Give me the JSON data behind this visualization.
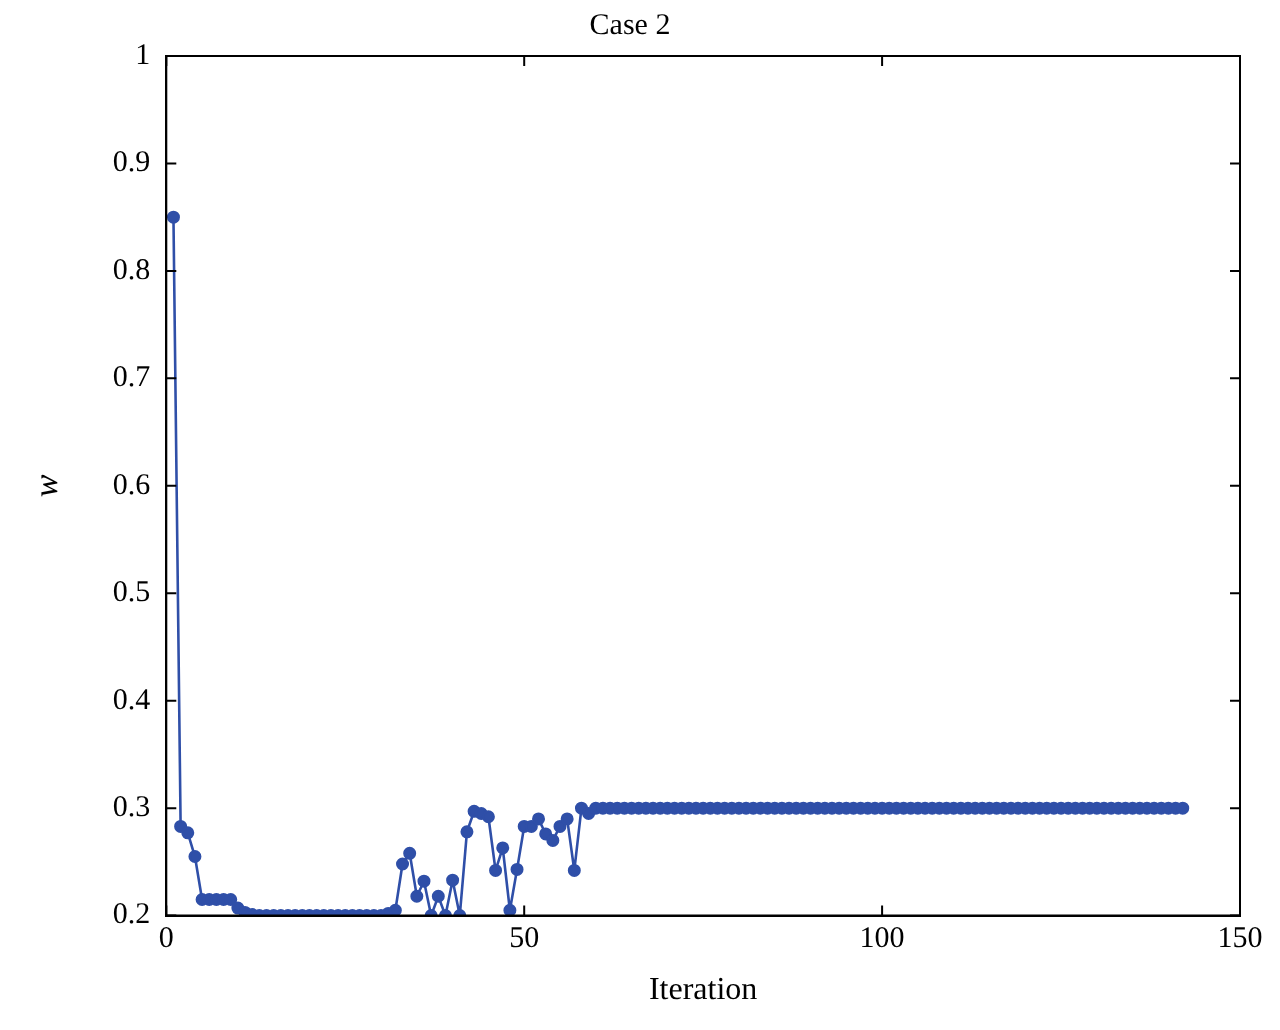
{
  "chart_data": {
    "type": "line",
    "title": "Case 2",
    "xlabel": "Iteration",
    "ylabel": "w",
    "x": [
      1,
      2,
      3,
      4,
      5,
      6,
      7,
      8,
      9,
      10,
      11,
      12,
      13,
      14,
      15,
      16,
      17,
      18,
      19,
      20,
      21,
      22,
      23,
      24,
      25,
      26,
      27,
      28,
      29,
      30,
      31,
      32,
      33,
      34,
      35,
      36,
      37,
      38,
      39,
      40,
      41,
      42,
      43,
      44,
      45,
      46,
      47,
      48,
      49,
      50,
      51,
      52,
      53,
      54,
      55,
      56,
      57,
      58,
      59,
      60,
      61,
      62,
      63,
      64,
      65,
      66,
      67,
      68,
      69,
      70,
      71,
      72,
      73,
      74,
      75,
      76,
      77,
      78,
      79,
      80,
      81,
      82,
      83,
      84,
      85,
      86,
      87,
      88,
      89,
      90,
      91,
      92,
      93,
      94,
      95,
      96,
      97,
      98,
      99,
      100,
      101,
      102,
      103,
      104,
      105,
      106,
      107,
      108,
      109,
      110,
      111,
      112,
      113,
      114,
      115,
      116,
      117,
      118,
      119,
      120,
      121,
      122,
      123,
      124,
      125,
      126,
      127,
      128,
      129,
      130,
      131,
      132,
      133,
      134,
      135,
      136,
      137,
      138,
      139,
      140,
      141,
      142
    ],
    "series": [
      {
        "color": "#2f4fa8",
        "values": [
          0.85,
          0.283,
          0.277,
          0.255,
          0.215,
          0.215,
          0.215,
          0.215,
          0.215,
          0.207,
          0.203,
          0.201,
          0.2,
          0.2,
          0.2,
          0.2,
          0.2,
          0.2,
          0.2,
          0.2,
          0.2,
          0.2,
          0.2,
          0.2,
          0.2,
          0.2,
          0.2,
          0.2,
          0.2,
          0.2,
          0.202,
          0.205,
          0.248,
          0.258,
          0.218,
          0.232,
          0.2,
          0.218,
          0.2,
          0.233,
          0.2,
          0.278,
          0.297,
          0.295,
          0.292,
          0.242,
          0.263,
          0.205,
          0.243,
          0.283,
          0.283,
          0.29,
          0.276,
          0.27,
          0.283,
          0.29,
          0.242,
          0.3,
          0.295,
          0.3,
          0.3,
          0.3,
          0.3,
          0.3,
          0.3,
          0.3,
          0.3,
          0.3,
          0.3,
          0.3,
          0.3,
          0.3,
          0.3,
          0.3,
          0.3,
          0.3,
          0.3,
          0.3,
          0.3,
          0.3,
          0.3,
          0.3,
          0.3,
          0.3,
          0.3,
          0.3,
          0.3,
          0.3,
          0.3,
          0.3,
          0.3,
          0.3,
          0.3,
          0.3,
          0.3,
          0.3,
          0.3,
          0.3,
          0.3,
          0.3,
          0.3,
          0.3,
          0.3,
          0.3,
          0.3,
          0.3,
          0.3,
          0.3,
          0.3,
          0.3,
          0.3,
          0.3,
          0.3,
          0.3,
          0.3,
          0.3,
          0.3,
          0.3,
          0.3,
          0.3,
          0.3,
          0.3,
          0.3,
          0.3,
          0.3,
          0.3,
          0.3,
          0.3,
          0.3,
          0.3,
          0.3,
          0.3,
          0.3,
          0.3,
          0.3,
          0.3,
          0.3,
          0.3,
          0.3,
          0.3,
          0.3,
          0.3
        ]
      }
    ],
    "xlim": [
      0,
      150
    ],
    "xticks": [
      0,
      50,
      100,
      150
    ],
    "ylim": [
      0.2,
      1
    ],
    "yticks": [
      0.2,
      0.3,
      0.4,
      0.5,
      0.6,
      0.7,
      0.8,
      0.9,
      1
    ],
    "marker": "circle",
    "line_style": "solid",
    "grid": false,
    "legend": false
  }
}
